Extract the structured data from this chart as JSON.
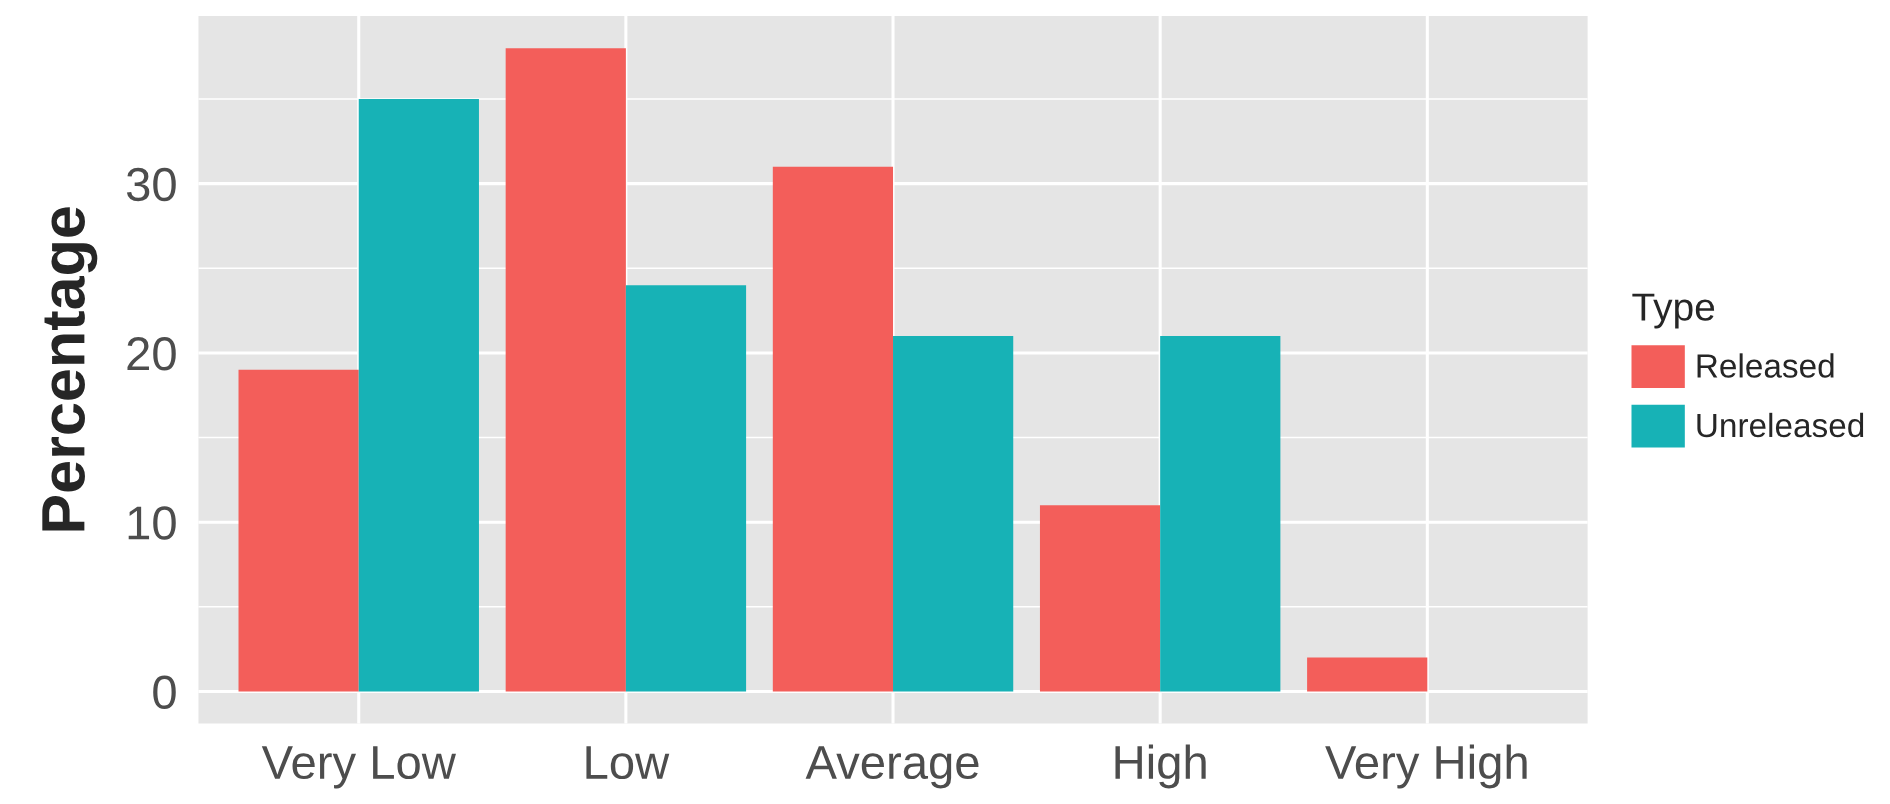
{
  "chart_data": {
    "type": "bar",
    "ylabel": "Percentage",
    "legend_title": "Type",
    "categories": [
      "Very Low",
      "Low",
      "Average",
      "High",
      "Very High"
    ],
    "series": [
      {
        "name": "Released",
        "color": "#f35e5a",
        "values": [
          19,
          38,
          31,
          11,
          2
        ]
      },
      {
        "name": "Unreleased",
        "color": "#17b2b6",
        "values": [
          35,
          24,
          21,
          21,
          null
        ]
      }
    ],
    "ylim": [
      -1.9,
      39.9
    ],
    "yticks": [
      0,
      10,
      20,
      30
    ],
    "grid": true,
    "legend": "right"
  }
}
